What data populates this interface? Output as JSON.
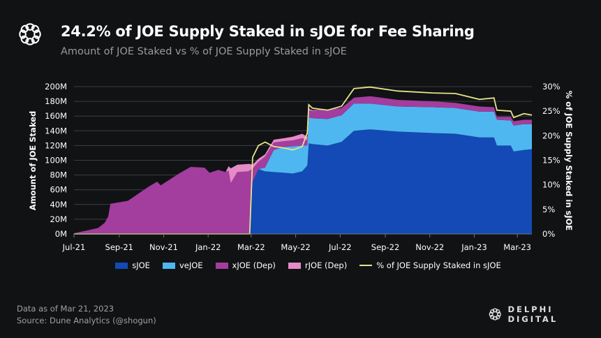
{
  "header": {
    "title": "24.2% of JOE Supply Staked in sJOE for Fee Sharing",
    "subtitle": "Amount of JOE Staked vs % of JOE Supply Staked in sJOE"
  },
  "footer": {
    "data_as_of": "Data as of Mar 21, 2023",
    "source": "Source: Dune Analytics (@shogun)",
    "brand": "DELPHI DIGITAL"
  },
  "colors": {
    "background": "#111214",
    "sJOE": "#134ab5",
    "veJOE": "#4fb7ef",
    "xJOE": "#a33d9e",
    "rJOE": "#e58bc7",
    "line": "#e4e48c",
    "grid": "#3b3e44"
  },
  "chart_data": {
    "type": "area",
    "stacked": true,
    "ylabel": "Amount of JOE Staked",
    "y2label": "% of JOE Supply Staked in sJOE",
    "ylim": [
      0,
      200
    ],
    "y2lim": [
      0,
      30
    ],
    "grid": true,
    "legend_position": "bottom",
    "yticks": [
      "0M",
      "20M",
      "40M",
      "60M",
      "80M",
      "100M",
      "120M",
      "140M",
      "160M",
      "180M",
      "200M"
    ],
    "y2ticks": [
      "0%",
      "5%",
      "10%",
      "15%",
      "20%",
      "25%",
      "30%"
    ],
    "xticks": [
      {
        "date": "2021-07-01",
        "label": "Jul-21"
      },
      {
        "date": "2021-09-01",
        "label": "Sep-21"
      },
      {
        "date": "2021-11-01",
        "label": "Nov-21"
      },
      {
        "date": "2022-01-01",
        "label": "Jan-22"
      },
      {
        "date": "2022-03-01",
        "label": "Mar-22"
      },
      {
        "date": "2022-05-01",
        "label": "May-22"
      },
      {
        "date": "2022-07-01",
        "label": "Jul-22"
      },
      {
        "date": "2022-09-01",
        "label": "Sep-22"
      },
      {
        "date": "2022-11-01",
        "label": "Nov-22"
      },
      {
        "date": "2023-01-01",
        "label": "Jan-23"
      },
      {
        "date": "2023-03-01",
        "label": "Mar-23"
      }
    ],
    "xlim": [
      "2021-07-01",
      "2023-03-21"
    ],
    "legend": [
      "sJOE",
      "veJOE",
      "xJOE (Dep)",
      "rJOE (Dep)",
      "% of JOE Supply Staked in sJOE"
    ],
    "x": [
      "2021-07-01",
      "2021-08-03",
      "2021-08-12",
      "2021-08-17",
      "2021-08-20",
      "2021-09-13",
      "2021-10-11",
      "2021-10-23",
      "2021-10-28",
      "2021-11-22",
      "2021-12-08",
      "2021-12-27",
      "2022-01-03",
      "2022-01-15",
      "2022-01-25",
      "2022-01-29",
      "2022-02-01",
      "2022-02-10",
      "2022-02-25",
      "2022-02-27",
      "2022-03-03",
      "2022-03-11",
      "2022-03-20",
      "2022-04-01",
      "2022-04-15",
      "2022-04-27",
      "2022-05-10",
      "2022-05-17",
      "2022-05-19",
      "2022-05-24",
      "2022-06-14",
      "2022-07-03",
      "2022-07-20",
      "2022-08-11",
      "2022-09-18",
      "2022-11-05",
      "2022-12-06",
      "2023-01-08",
      "2023-01-28",
      "2023-02-01",
      "2023-02-20",
      "2023-02-24",
      "2023-03-10",
      "2023-03-21"
    ],
    "series": [
      {
        "name": "sJOE",
        "axis": "left",
        "unit": "M",
        "values": [
          0,
          0,
          0,
          0,
          0,
          0,
          0,
          0,
          0,
          0,
          0,
          0,
          0,
          0,
          0,
          0,
          0,
          0,
          0,
          0,
          71,
          88,
          85,
          84,
          83,
          82,
          85,
          93,
          123,
          122,
          120,
          125,
          140,
          142,
          139,
          137,
          136,
          131,
          131,
          120,
          120,
          112,
          114,
          115
        ]
      },
      {
        "name": "veJOE",
        "axis": "left",
        "unit": "M",
        "values": [
          0,
          0,
          0,
          0,
          0,
          0,
          0,
          0,
          0,
          0,
          0,
          0,
          0,
          0,
          0,
          0,
          0,
          0,
          0,
          0,
          0,
          0,
          5,
          30,
          35,
          37,
          35,
          27,
          35,
          35,
          36,
          36,
          37,
          35,
          34,
          35,
          35,
          35,
          35,
          35,
          34,
          35,
          35,
          34
        ]
      },
      {
        "name": "xJOE (Dep)",
        "axis": "left",
        "unit": "M",
        "values": [
          1,
          8,
          15,
          24,
          41,
          45,
          64,
          71,
          66,
          82,
          91,
          90,
          83,
          87,
          84,
          86,
          69,
          84,
          85,
          86,
          18,
          10,
          15,
          10,
          8,
          8,
          10,
          7,
          10,
          10,
          13,
          10,
          8,
          10,
          9,
          8,
          7,
          7,
          6,
          4,
          5,
          6,
          6,
          6
        ]
      },
      {
        "name": "rJOE (Dep)",
        "axis": "left",
        "unit": "M",
        "values": [
          0,
          0,
          0,
          0,
          0,
          0,
          0,
          0,
          0,
          0,
          0,
          0,
          0,
          0,
          0,
          6,
          20,
          10,
          10,
          9,
          5,
          4,
          3,
          4,
          4,
          5,
          6,
          5,
          2,
          1,
          0,
          0,
          0,
          0,
          0,
          0,
          0,
          0,
          0,
          0,
          0,
          0,
          0,
          0
        ]
      },
      {
        "name": "% of JOE Supply Staked in sJOE",
        "axis": "right",
        "unit": "%",
        "type": "line",
        "values": [
          0,
          0,
          0,
          0,
          0,
          0,
          0,
          0,
          0,
          0,
          0,
          0,
          0,
          0,
          0,
          0,
          0,
          0,
          0,
          0,
          15.6,
          18,
          18.7,
          17.8,
          17.5,
          17.1,
          17.8,
          20.6,
          26.3,
          25.6,
          25.2,
          26,
          29.6,
          29.9,
          29.1,
          28.7,
          28.6,
          27.4,
          27.7,
          25.2,
          25,
          23.7,
          24.5,
          24.2
        ]
      }
    ]
  }
}
